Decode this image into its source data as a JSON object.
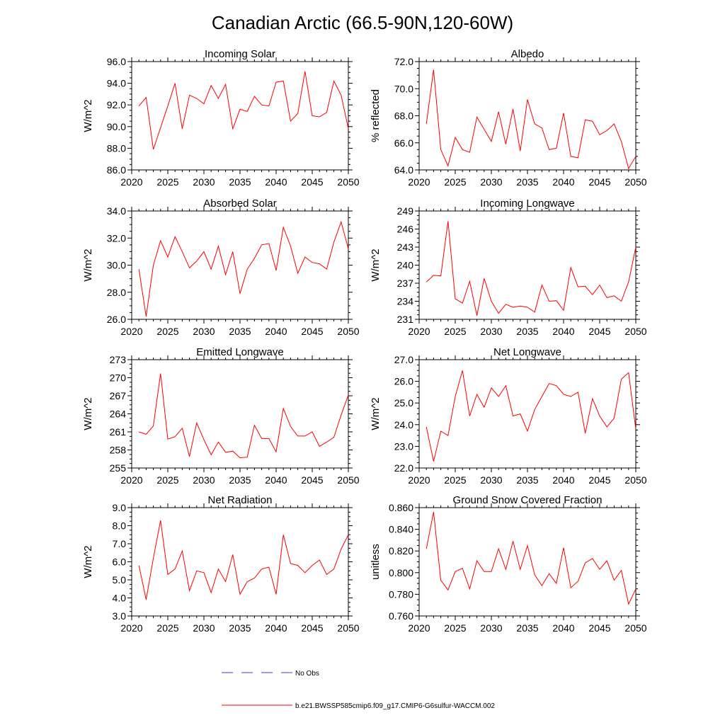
{
  "figure": {
    "title": "Canadian Arctic (66.5-90N,120-60W)",
    "line_color": "#ff0000",
    "obs_color": "#3b3bdb"
  },
  "legend": {
    "obs_label": "No Obs",
    "model_label": "b.e21.BWSSP585cmip6.f09_g17.CMIP6-G6sulfur-WACCM.002"
  },
  "chart_data": [
    {
      "type": "line",
      "title": "Incoming Solar",
      "ylabel": "W/m^2",
      "xlim": [
        2020,
        2050
      ],
      "xticks": [
        2020,
        2025,
        2030,
        2035,
        2040,
        2045,
        2050
      ],
      "xtick_labels": [
        "2020",
        "2025",
        "2030",
        "2035",
        "2040",
        "2045",
        "2050"
      ],
      "ylim": [
        86,
        96
      ],
      "yticks": [
        86,
        88,
        90,
        92,
        94,
        96
      ],
      "ytick_labels": [
        "86.0",
        "88.0",
        "90.0",
        "92.0",
        "94.0",
        "96.0"
      ],
      "series": [
        {
          "x": [
            2021,
            2022,
            2023,
            2024,
            2025,
            2026,
            2027,
            2028,
            2029,
            2030,
            2031,
            2032,
            2033,
            2034,
            2035,
            2036,
            2037,
            2038,
            2039,
            2040,
            2041,
            2042,
            2043,
            2044,
            2045,
            2046,
            2047,
            2048,
            2049,
            2050
          ],
          "y": [
            91.9,
            92.7,
            87.9,
            89.9,
            91.9,
            94.0,
            89.8,
            92.9,
            92.6,
            92.1,
            93.8,
            92.6,
            93.9,
            89.8,
            91.6,
            91.4,
            92.8,
            92.0,
            91.9,
            94.1,
            94.2,
            90.5,
            91.2,
            95.1,
            91.0,
            90.9,
            91.3,
            94.2,
            92.9,
            89.8
          ]
        }
      ]
    },
    {
      "type": "line",
      "title": "Albedo",
      "ylabel": "% reflected",
      "xlim": [
        2020,
        2050
      ],
      "xticks": [
        2020,
        2025,
        2030,
        2035,
        2040,
        2045,
        2050
      ],
      "xtick_labels": [
        "2020",
        "2025",
        "2030",
        "2035",
        "2040",
        "2045",
        "2050"
      ],
      "ylim": [
        64,
        72
      ],
      "yticks": [
        64,
        66,
        68,
        70,
        72
      ],
      "ytick_labels": [
        "64.0",
        "66.0",
        "68.0",
        "70.0",
        "72.0"
      ],
      "series": [
        {
          "x": [
            2021,
            2022,
            2023,
            2024,
            2025,
            2026,
            2027,
            2028,
            2029,
            2030,
            2031,
            2032,
            2033,
            2034,
            2035,
            2036,
            2037,
            2038,
            2039,
            2040,
            2041,
            2042,
            2043,
            2044,
            2045,
            2046,
            2047,
            2048,
            2049,
            2050
          ],
          "y": [
            67.4,
            71.4,
            65.5,
            64.3,
            66.4,
            65.5,
            65.3,
            67.9,
            67.0,
            66.1,
            68.3,
            65.9,
            68.5,
            65.4,
            69.2,
            67.4,
            67.1,
            65.5,
            65.6,
            68.2,
            65.0,
            64.9,
            67.7,
            67.6,
            66.6,
            66.9,
            67.4,
            66.1,
            64.1,
            65.0
          ]
        }
      ]
    },
    {
      "type": "line",
      "title": "Absorbed Solar",
      "ylabel": "W/m^2",
      "xlim": [
        2020,
        2050
      ],
      "xticks": [
        2020,
        2025,
        2030,
        2035,
        2040,
        2045,
        2050
      ],
      "xtick_labels": [
        "2020",
        "2025",
        "2030",
        "2035",
        "2040",
        "2045",
        "2050"
      ],
      "ylim": [
        26,
        34
      ],
      "yticks": [
        26,
        28,
        30,
        32,
        34
      ],
      "ytick_labels": [
        "26.0",
        "28.0",
        "30.0",
        "32.0",
        "34.0"
      ],
      "series": [
        {
          "x": [
            2021,
            2022,
            2023,
            2024,
            2025,
            2026,
            2027,
            2028,
            2029,
            2030,
            2031,
            2032,
            2033,
            2034,
            2035,
            2036,
            2037,
            2038,
            2039,
            2040,
            2041,
            2042,
            2043,
            2044,
            2045,
            2046,
            2047,
            2048,
            2049,
            2050
          ],
          "y": [
            29.7,
            26.2,
            30.0,
            31.8,
            30.6,
            32.1,
            31.0,
            29.8,
            30.3,
            31.0,
            29.7,
            31.4,
            29.3,
            31.0,
            27.9,
            29.7,
            30.5,
            31.5,
            31.6,
            29.6,
            32.8,
            31.4,
            29.4,
            30.6,
            30.2,
            30.1,
            29.7,
            31.7,
            33.2,
            31.2
          ]
        }
      ]
    },
    {
      "type": "line",
      "title": "Incoming Longwave",
      "ylabel": "W/m^2",
      "xlim": [
        2020,
        2050
      ],
      "xticks": [
        2020,
        2025,
        2030,
        2035,
        2040,
        2045,
        2050
      ],
      "xtick_labels": [
        "2020",
        "2025",
        "2030",
        "2035",
        "2040",
        "2045",
        "2050"
      ],
      "ylim": [
        231,
        249
      ],
      "yticks": [
        231,
        234,
        237,
        240,
        243,
        246,
        249
      ],
      "ytick_labels": [
        "231",
        "234",
        "237",
        "240",
        "243",
        "246",
        "249"
      ],
      "series": [
        {
          "x": [
            2021,
            2022,
            2023,
            2024,
            2025,
            2026,
            2027,
            2028,
            2029,
            2030,
            2031,
            2032,
            2033,
            2034,
            2035,
            2036,
            2037,
            2038,
            2039,
            2040,
            2041,
            2042,
            2043,
            2044,
            2045,
            2046,
            2047,
            2048,
            2049,
            2050
          ],
          "y": [
            237.2,
            238.3,
            238.2,
            247.3,
            234.4,
            233.7,
            237.3,
            231.6,
            237.8,
            234.0,
            232.0,
            233.5,
            233.0,
            233.2,
            233.0,
            232.2,
            236.7,
            234.0,
            234.1,
            232.5,
            239.6,
            236.4,
            236.5,
            235.1,
            236.7,
            234.6,
            234.9,
            234.0,
            237.2,
            243.0
          ]
        }
      ]
    },
    {
      "type": "line",
      "title": "Emitted Longwave",
      "ylabel": "W/m^2",
      "xlim": [
        2020,
        2050
      ],
      "xticks": [
        2020,
        2025,
        2030,
        2035,
        2040,
        2045,
        2050
      ],
      "xtick_labels": [
        "2020",
        "2025",
        "2030",
        "2035",
        "2040",
        "2045",
        "2050"
      ],
      "ylim": [
        255,
        273
      ],
      "yticks": [
        255,
        258,
        261,
        264,
        267,
        270,
        273
      ],
      "ytick_labels": [
        "255",
        "258",
        "261",
        "264",
        "267",
        "270",
        "273"
      ],
      "series": [
        {
          "x": [
            2021,
            2022,
            2023,
            2024,
            2025,
            2026,
            2027,
            2028,
            2029,
            2030,
            2031,
            2032,
            2033,
            2034,
            2035,
            2036,
            2037,
            2038,
            2039,
            2040,
            2041,
            2042,
            2043,
            2044,
            2045,
            2046,
            2047,
            2048,
            2049,
            2050
          ],
          "y": [
            261.0,
            260.6,
            262.0,
            270.7,
            259.8,
            260.2,
            261.6,
            256.9,
            262.5,
            259.7,
            257.2,
            259.3,
            257.6,
            257.8,
            256.7,
            256.8,
            262.1,
            259.9,
            259.9,
            257.7,
            264.9,
            261.9,
            260.3,
            260.3,
            261.0,
            258.6,
            259.3,
            260.1,
            263.8,
            267.1
          ]
        }
      ]
    },
    {
      "type": "line",
      "title": "Net Longwave",
      "ylabel": "W/m^2",
      "xlim": [
        2020,
        2050
      ],
      "xticks": [
        2020,
        2025,
        2030,
        2035,
        2040,
        2045,
        2050
      ],
      "xtick_labels": [
        "2020",
        "2025",
        "2030",
        "2035",
        "2040",
        "2045",
        "2050"
      ],
      "ylim": [
        22,
        27
      ],
      "yticks": [
        22,
        23,
        24,
        25,
        26,
        27
      ],
      "ytick_labels": [
        "22.0",
        "23.0",
        "24.0",
        "25.0",
        "26.0",
        "27.0"
      ],
      "series": [
        {
          "x": [
            2021,
            2022,
            2023,
            2024,
            2025,
            2026,
            2027,
            2028,
            2029,
            2030,
            2031,
            2032,
            2033,
            2034,
            2035,
            2036,
            2037,
            2038,
            2039,
            2040,
            2041,
            2042,
            2043,
            2044,
            2045,
            2046,
            2047,
            2048,
            2049,
            2050
          ],
          "y": [
            23.9,
            22.3,
            23.7,
            23.5,
            25.3,
            26.5,
            24.4,
            25.4,
            24.8,
            25.7,
            25.3,
            25.8,
            24.4,
            24.5,
            23.7,
            24.7,
            25.3,
            25.9,
            25.8,
            25.4,
            25.3,
            25.5,
            23.6,
            25.2,
            24.4,
            23.9,
            24.3,
            26.1,
            26.4,
            23.8
          ]
        }
      ]
    },
    {
      "type": "line",
      "title": "Net Radiation",
      "ylabel": "W/m^2",
      "xlim": [
        2020,
        2050
      ],
      "xticks": [
        2020,
        2025,
        2030,
        2035,
        2040,
        2045,
        2050
      ],
      "xtick_labels": [
        "2020",
        "2025",
        "2030",
        "2035",
        "2040",
        "2045",
        "2050"
      ],
      "ylim": [
        3,
        9
      ],
      "yticks": [
        3,
        4,
        5,
        6,
        7,
        8,
        9
      ],
      "ytick_labels": [
        "3.0",
        "4.0",
        "5.0",
        "6.0",
        "7.0",
        "8.0",
        "9.0"
      ],
      "series": [
        {
          "x": [
            2021,
            2022,
            2023,
            2024,
            2025,
            2026,
            2027,
            2028,
            2029,
            2030,
            2031,
            2032,
            2033,
            2034,
            2035,
            2036,
            2037,
            2038,
            2039,
            2040,
            2041,
            2042,
            2043,
            2044,
            2045,
            2046,
            2047,
            2048,
            2049,
            2050
          ],
          "y": [
            5.8,
            3.9,
            6.2,
            8.3,
            5.3,
            5.6,
            6.6,
            4.4,
            5.5,
            5.4,
            4.3,
            5.6,
            4.9,
            6.4,
            4.2,
            4.9,
            5.1,
            5.6,
            5.7,
            4.2,
            7.5,
            5.9,
            5.8,
            5.4,
            5.8,
            6.1,
            5.3,
            5.6,
            6.7,
            7.5
          ]
        }
      ]
    },
    {
      "type": "line",
      "title": "Ground Snow Covered Fraction",
      "ylabel": "unitless",
      "xlim": [
        2020,
        2050
      ],
      "xticks": [
        2020,
        2025,
        2030,
        2035,
        2040,
        2045,
        2050
      ],
      "xtick_labels": [
        "2020",
        "2025",
        "2030",
        "2035",
        "2040",
        "2045",
        "2050"
      ],
      "ylim": [
        0.76,
        0.86
      ],
      "yticks": [
        0.76,
        0.78,
        0.8,
        0.82,
        0.84,
        0.86
      ],
      "ytick_labels": [
        "0.760",
        "0.780",
        "0.800",
        "0.820",
        "0.840",
        "0.860"
      ],
      "series": [
        {
          "x": [
            2021,
            2022,
            2023,
            2024,
            2025,
            2026,
            2027,
            2028,
            2029,
            2030,
            2031,
            2032,
            2033,
            2034,
            2035,
            2036,
            2037,
            2038,
            2039,
            2040,
            2041,
            2042,
            2043,
            2044,
            2045,
            2046,
            2047,
            2048,
            2049,
            2050
          ],
          "y": [
            0.822,
            0.856,
            0.793,
            0.784,
            0.801,
            0.804,
            0.785,
            0.811,
            0.801,
            0.801,
            0.822,
            0.803,
            0.829,
            0.803,
            0.825,
            0.798,
            0.788,
            0.799,
            0.79,
            0.823,
            0.786,
            0.792,
            0.809,
            0.813,
            0.803,
            0.811,
            0.793,
            0.802,
            0.771,
            0.785
          ]
        }
      ]
    }
  ]
}
